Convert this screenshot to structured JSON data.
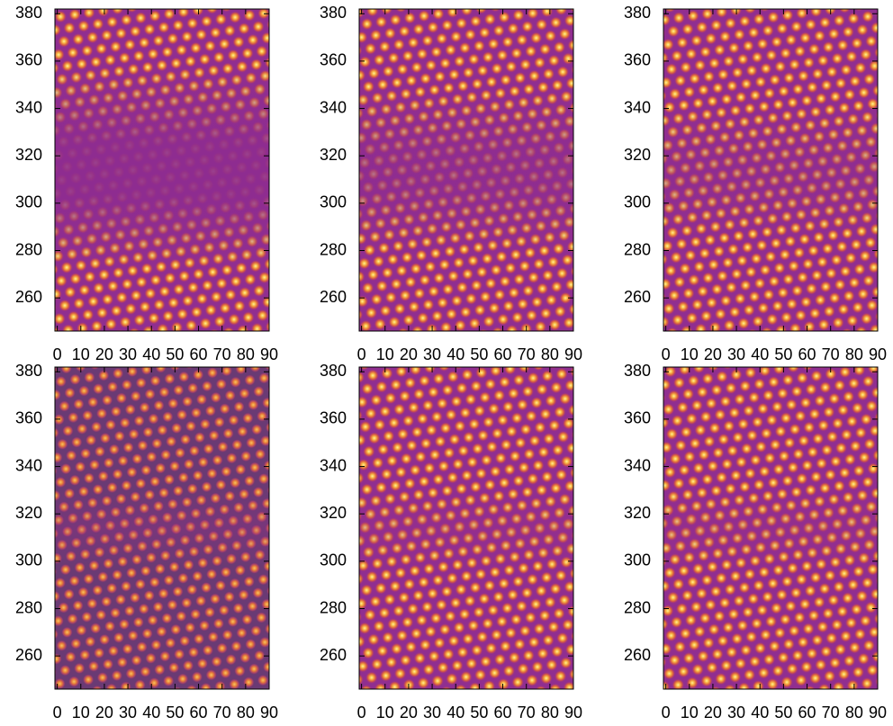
{
  "chart_data": [
    {
      "type": "heatmap",
      "xlim": [
        -1,
        90
      ],
      "ylim": [
        246,
        382
      ],
      "xticks": [
        0,
        10,
        20,
        30,
        40,
        50,
        60,
        70,
        80,
        90
      ],
      "yticks": [
        260,
        280,
        300,
        320,
        340,
        360,
        380
      ]
    },
    {
      "type": "heatmap",
      "xlim": [
        -1,
        90
      ],
      "ylim": [
        246,
        382
      ],
      "xticks": [
        0,
        10,
        20,
        30,
        40,
        50,
        60,
        70,
        80,
        90
      ],
      "yticks": [
        260,
        280,
        300,
        320,
        340,
        360,
        380
      ]
    },
    {
      "type": "heatmap",
      "xlim": [
        -1,
        90
      ],
      "ylim": [
        246,
        382
      ],
      "xticks": [
        0,
        10,
        20,
        30,
        40,
        50,
        60,
        70,
        80,
        90
      ],
      "yticks": [
        260,
        280,
        300,
        320,
        340,
        360,
        380
      ]
    },
    {
      "type": "heatmap",
      "xlim": [
        -1,
        90
      ],
      "ylim": [
        246,
        382
      ],
      "xticks": [
        0,
        10,
        20,
        30,
        40,
        50,
        60,
        70,
        80,
        90
      ],
      "yticks": [
        260,
        280,
        300,
        320,
        340,
        360,
        380
      ]
    },
    {
      "type": "heatmap",
      "xlim": [
        -1,
        90
      ],
      "ylim": [
        246,
        382
      ],
      "xticks": [
        0,
        10,
        20,
        30,
        40,
        50,
        60,
        70,
        80,
        90
      ],
      "yticks": [
        260,
        280,
        300,
        320,
        340,
        360,
        380
      ]
    },
    {
      "type": "heatmap",
      "xlim": [
        -1,
        90
      ],
      "ylim": [
        246,
        382
      ],
      "xticks": [
        0,
        10,
        20,
        30,
        40,
        50,
        60,
        70,
        80,
        90
      ],
      "yticks": [
        260,
        280,
        300,
        320,
        340,
        360,
        380
      ]
    }
  ]
}
